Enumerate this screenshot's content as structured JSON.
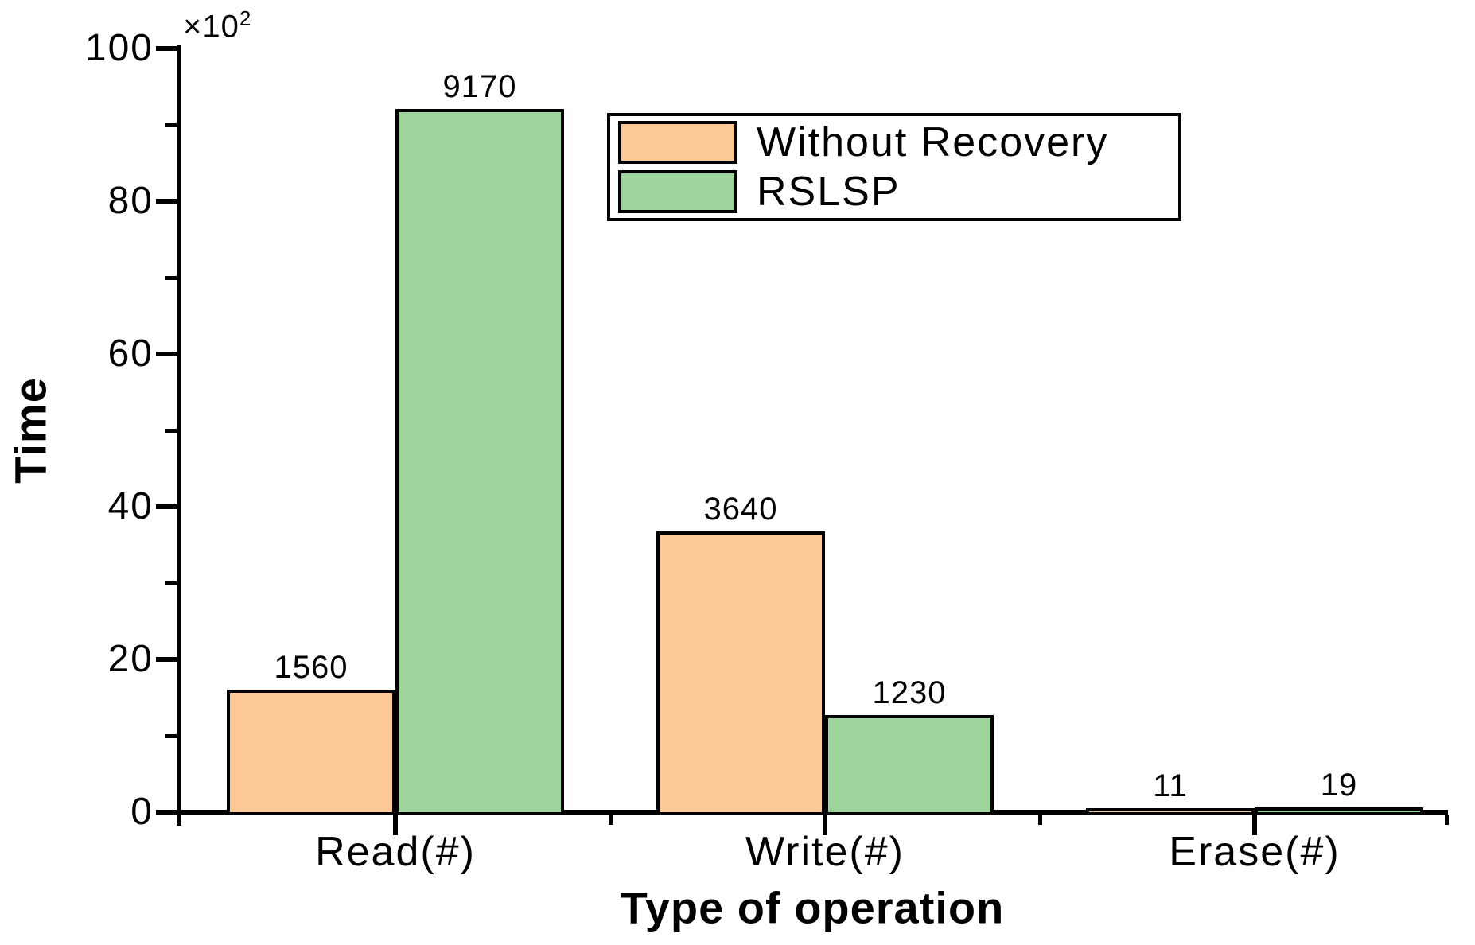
{
  "chart_data": {
    "type": "bar",
    "title": "",
    "xlabel": "Type of operation",
    "ylabel": "Time",
    "y_scale_label_base": "×10",
    "y_scale_label_exponent": "2",
    "categories": [
      "Read(#)",
      "Write(#)",
      "Erase(#)"
    ],
    "series": [
      {
        "name": "Without Recovery",
        "color": "#FBC896",
        "values": [
          1560,
          3640,
          11
        ]
      },
      {
        "name": "RSLSP",
        "color": "#9CD49C",
        "values": [
          9170,
          1230,
          19
        ]
      }
    ],
    "bar_value_labels": {
      "Without Recovery": [
        "1560",
        "3640",
        "11"
      ],
      "RSLSP": [
        "9170",
        "1230",
        "19"
      ]
    },
    "ylim": [
      0,
      10000
    ],
    "y_display_divisor": 100,
    "y_major_ticks_display": [
      0,
      20,
      40,
      60,
      80,
      100
    ],
    "y_minor_ticks_display": [
      10,
      30,
      50,
      70,
      90
    ],
    "grid": false,
    "legend_position": "top-center",
    "colors": {
      "axis": "#000000",
      "text": "#000000",
      "bar_border": "#000000",
      "background": "#FFFFFF",
      "legend_border": "#000000"
    }
  }
}
